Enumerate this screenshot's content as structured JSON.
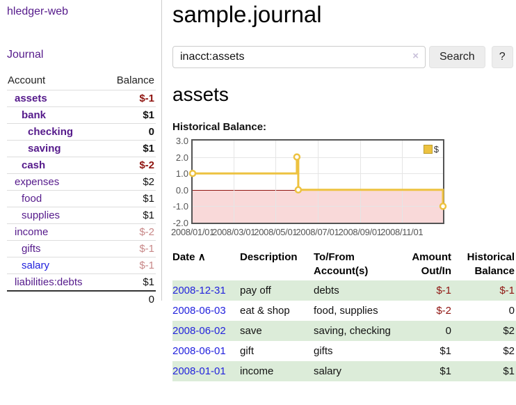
{
  "app": {
    "brand": "hledger-web"
  },
  "sidebar": {
    "nav_journal": "Journal",
    "accounts_table": {
      "account_header": "Account",
      "balance_header": "Balance",
      "rows": [
        {
          "account": "assets",
          "depth": 1,
          "bold": true,
          "link_color": "purple",
          "balance": "$-1",
          "balance_class": "neg-strong"
        },
        {
          "account": "bank",
          "depth": 2,
          "bold": true,
          "link_color": "purple",
          "balance": "$1",
          "balance_class": "pos-strong"
        },
        {
          "account": "checking",
          "depth": 3,
          "bold": true,
          "link_color": "purple",
          "balance": "0",
          "balance_class": "pos-strong"
        },
        {
          "account": "saving",
          "depth": 3,
          "bold": true,
          "link_color": "purple",
          "balance": "$1",
          "balance_class": "pos-strong"
        },
        {
          "account": "cash",
          "depth": 2,
          "bold": true,
          "link_color": "purple",
          "balance": "$-2",
          "balance_class": "neg-strong"
        },
        {
          "account": "expenses",
          "depth": 1,
          "bold": false,
          "link_color": "purple",
          "balance": "$2",
          "balance_class": "pos"
        },
        {
          "account": "food",
          "depth": 2,
          "bold": false,
          "link_color": "purple",
          "balance": "$1",
          "balance_class": "pos"
        },
        {
          "account": "supplies",
          "depth": 2,
          "bold": false,
          "link_color": "purple",
          "balance": "$1",
          "balance_class": "pos"
        },
        {
          "account": "income",
          "depth": 1,
          "bold": false,
          "link_color": "purple",
          "balance": "$-2",
          "balance_class": "neg-soft"
        },
        {
          "account": "gifts",
          "depth": 2,
          "bold": false,
          "link_color": "purple",
          "balance": "$-1",
          "balance_class": "neg-soft"
        },
        {
          "account": "salary",
          "depth": 2,
          "bold": false,
          "link_color": "blue",
          "balance": "$-1",
          "balance_class": "neg-soft"
        },
        {
          "account": "liabilities:debts",
          "depth": 1,
          "bold": false,
          "link_color": "purple",
          "balance": "$1",
          "balance_class": "pos"
        }
      ],
      "total": "0"
    }
  },
  "header": {
    "title": "sample.journal"
  },
  "search": {
    "value": "inacct:assets",
    "clear_icon": "×",
    "search_button": "Search",
    "help_button": "?"
  },
  "account_page": {
    "heading": "assets",
    "chart_label": "Historical Balance:"
  },
  "chart_data": {
    "type": "line",
    "title": "Historical Balance",
    "step": true,
    "series": [
      {
        "name": "$",
        "color": "#edc240",
        "points": [
          {
            "x": "2008-01-01",
            "y": 1
          },
          {
            "x": "2008-06-01",
            "y": 2
          },
          {
            "x": "2008-06-03",
            "y": 0
          },
          {
            "x": "2008-12-31",
            "y": -1
          }
        ]
      }
    ],
    "x_range": [
      "2008-01-01",
      "2008-12-31"
    ],
    "ylim": [
      -2,
      3
    ],
    "yticks": [
      "3.0",
      "2.0",
      "1.0",
      "0.0",
      "-1.0",
      "-2.0"
    ],
    "ytick_values": [
      3,
      2,
      1,
      0,
      -1,
      -2
    ],
    "xticks": [
      {
        "date": "2008-01-01",
        "label": "2008/01/01"
      },
      {
        "date": "2008-03-01",
        "label": "2008/03/01"
      },
      {
        "date": "2008-05-01",
        "label": "2008/05/01"
      },
      {
        "date": "2008-07-01",
        "label": "2008/07/01"
      },
      {
        "date": "2008-09-01",
        "label": "2008/09/01"
      },
      {
        "date": "2008-11-01",
        "label": "2008/11/01"
      }
    ],
    "grid": true,
    "legend": [
      {
        "label": "$",
        "color": "#edc240"
      }
    ],
    "legend_position": "top-right",
    "negative_region": {
      "below": 0,
      "fill": "#f9d9d9",
      "line_color": "#8f1410"
    }
  },
  "register": {
    "headers": [
      {
        "label": "Date",
        "sort_indicator": "∧",
        "align": "left"
      },
      {
        "label": "Description",
        "align": "left"
      },
      {
        "label": "To/From Account(s)",
        "align": "left"
      },
      {
        "label": "Amount Out/In",
        "align": "right"
      },
      {
        "label": "Historical Balance",
        "align": "right"
      }
    ],
    "rows": [
      {
        "date": "2008-12-31",
        "description": "pay off",
        "accounts": "debts",
        "amount": "$-1",
        "amount_neg": true,
        "balance": "$-1",
        "balance_neg": true,
        "green": true
      },
      {
        "date": "2008-06-03",
        "description": "eat & shop",
        "accounts": "food, supplies",
        "amount": "$-2",
        "amount_neg": true,
        "balance": "0",
        "balance_neg": false,
        "green": false
      },
      {
        "date": "2008-06-02",
        "description": "save",
        "accounts": "saving, checking",
        "amount": "0",
        "amount_neg": false,
        "balance": "$2",
        "balance_neg": false,
        "green": true
      },
      {
        "date": "2008-06-01",
        "description": "gift",
        "accounts": "gifts",
        "amount": "$1",
        "amount_neg": false,
        "balance": "$2",
        "balance_neg": false,
        "green": false
      },
      {
        "date": "2008-01-01",
        "description": "income",
        "accounts": "salary",
        "amount": "$1",
        "amount_neg": false,
        "balance": "$1",
        "balance_neg": false,
        "green": true
      }
    ]
  },
  "colors": {
    "link_purple": "#551a8b",
    "link_blue": "#2222dd",
    "negative_strong": "#8f1410",
    "negative_soft": "#c88888",
    "row_green": "#dcecd9",
    "chart_line": "#edc240",
    "chart_negative_fill": "#f9d9d9",
    "chart_zero_line": "#8f1410"
  }
}
